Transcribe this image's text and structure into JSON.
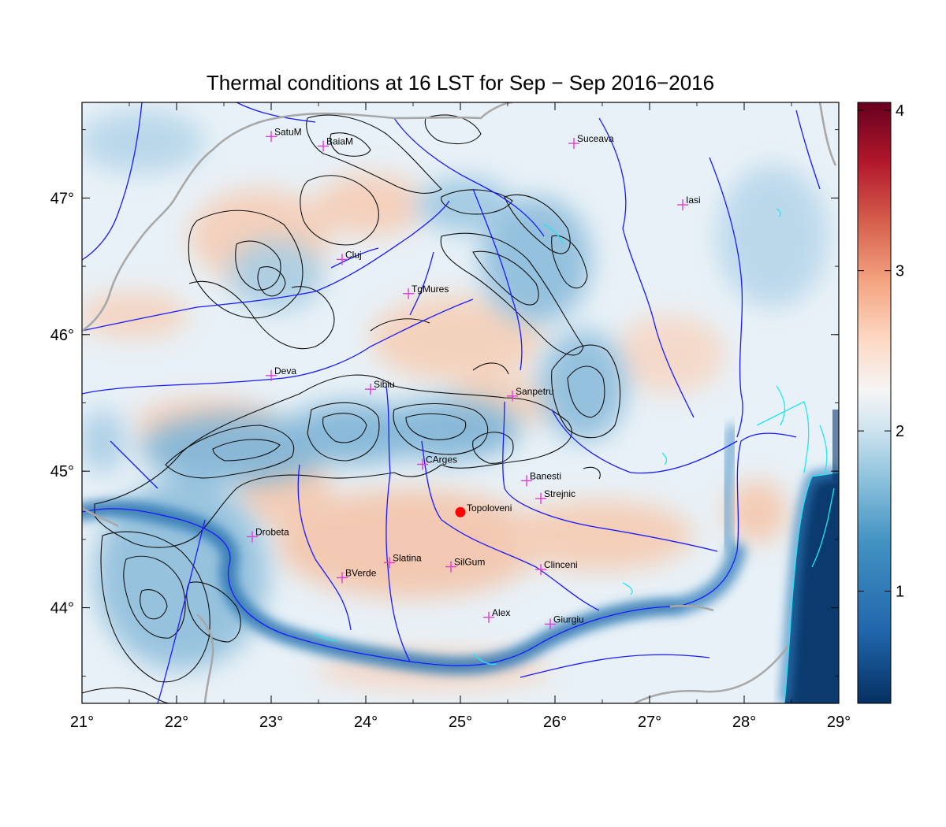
{
  "title": "Thermal conditions at 16 LST for Sep − Sep  2016−2016",
  "map": {
    "lon_range": [
      21,
      29
    ],
    "lat_range": [
      43.3,
      47.7
    ],
    "lon_ticks": [
      "21°",
      "22°",
      "23°",
      "24°",
      "25°",
      "26°",
      "27°",
      "28°",
      "29°"
    ],
    "lat_ticks": [
      "44°",
      "45°",
      "46°",
      "47°"
    ],
    "colors": {
      "cold_extreme": "#053061",
      "cold": "#4393c3",
      "cool": "#92c5de",
      "neutral": "#eef4f8",
      "warm": "#f4a582",
      "hot": "#b2182b",
      "hot_extreme": "#67001f",
      "rivers": "#1a1aff",
      "coast": "#22e6f0",
      "borders": "#a8a8a8",
      "station_marker": "#e23cd6",
      "highlight_station": "#ff0000"
    },
    "stations": [
      {
        "name": "SatuM",
        "lon": 23.0,
        "lat": 47.45
      },
      {
        "name": "BaiaM",
        "lon": 23.55,
        "lat": 47.38
      },
      {
        "name": "Suceava",
        "lon": 26.2,
        "lat": 47.4
      },
      {
        "name": "Iasi",
        "lon": 27.35,
        "lat": 46.95
      },
      {
        "name": "Cluj",
        "lon": 23.75,
        "lat": 46.55
      },
      {
        "name": "TgMures",
        "lon": 24.45,
        "lat": 46.3
      },
      {
        "name": "Deva",
        "lon": 23.0,
        "lat": 45.7
      },
      {
        "name": "Sibiu",
        "lon": 24.05,
        "lat": 45.6
      },
      {
        "name": "Sanpetru",
        "lon": 25.55,
        "lat": 45.55
      },
      {
        "name": "CArges",
        "lon": 24.6,
        "lat": 45.05
      },
      {
        "name": "Banesti",
        "lon": 25.7,
        "lat": 44.93
      },
      {
        "name": "Strejnic",
        "lon": 25.85,
        "lat": 44.8
      },
      {
        "name": "Drobeta",
        "lon": 22.8,
        "lat": 44.52
      },
      {
        "name": "Slatina",
        "lon": 24.25,
        "lat": 44.33
      },
      {
        "name": "SilGum",
        "lon": 24.9,
        "lat": 44.3
      },
      {
        "name": "Clinceni",
        "lon": 25.85,
        "lat": 44.28
      },
      {
        "name": "BVerde",
        "lon": 23.75,
        "lat": 44.22
      },
      {
        "name": "Alex",
        "lon": 25.3,
        "lat": 43.93
      },
      {
        "name": "Giurgiu",
        "lon": 25.95,
        "lat": 43.88
      }
    ],
    "highlight_station": {
      "name": "Topoloveni",
      "lon": 25.0,
      "lat": 44.7
    }
  },
  "colorbar": {
    "min": 0.3,
    "max": 4.05,
    "ticks": [
      "1",
      "2",
      "3",
      "4"
    ],
    "tick_values": [
      1,
      2,
      3,
      4
    ]
  }
}
